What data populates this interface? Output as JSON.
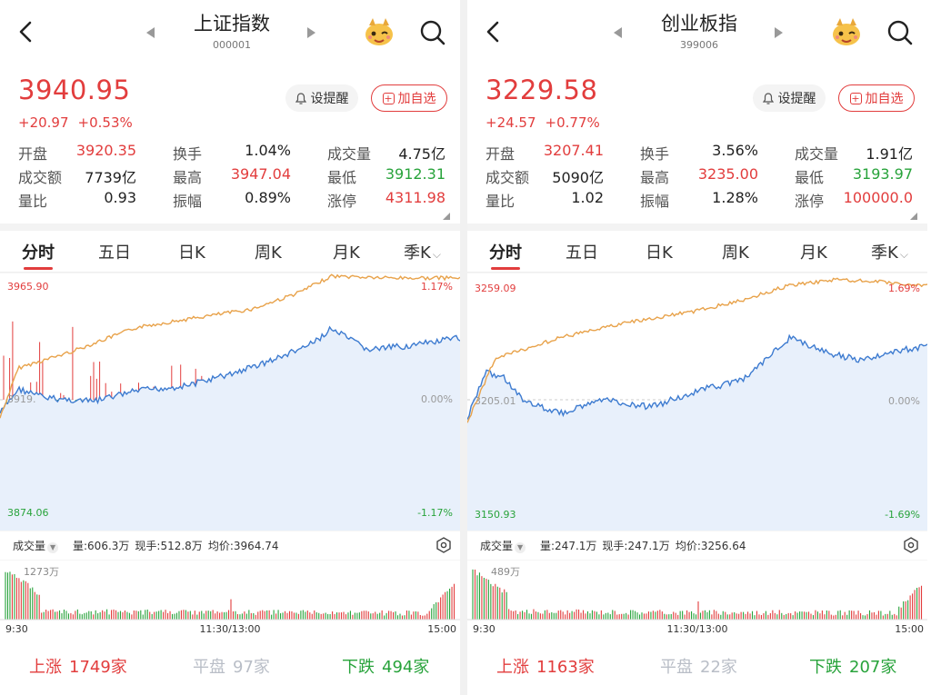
{
  "panels": [
    {
      "title": "上证指数",
      "code": "000001",
      "price": "3940.95",
      "change_abs": "+20.97",
      "change_pct": "+0.53%",
      "alert_label": "设提醒",
      "fav_label": "加自选",
      "stats": [
        [
          {
            "label": "开盘",
            "value": "3920.35",
            "color": "red"
          },
          {
            "label": "换手",
            "value": "1.04%",
            "color": ""
          },
          {
            "label": "成交量",
            "value": "4.75亿",
            "color": ""
          }
        ],
        [
          {
            "label": "成交额",
            "value": "7739亿",
            "color": ""
          },
          {
            "label": "最高",
            "value": "3947.04",
            "color": "red"
          },
          {
            "label": "最低",
            "value": "3912.31",
            "color": "green"
          }
        ],
        [
          {
            "label": "量比",
            "value": "0.93",
            "color": ""
          },
          {
            "label": "振幅",
            "value": "0.89%",
            "color": ""
          },
          {
            "label": "涨停",
            "value": "4311.98",
            "color": "red"
          }
        ]
      ],
      "tabs": [
        "分时",
        "五日",
        "日K",
        "周K",
        "月K",
        "季K"
      ],
      "chart": {
        "y_high": "3965.90",
        "y_low": "3874.06",
        "y_mid": "3919.",
        "pct_high": "1.17%",
        "pct_low": "-1.17%",
        "pct_mid": "0.00%"
      },
      "volume": {
        "selector": "成交量",
        "amount": "量:606.3万",
        "current": "现手:512.8万",
        "avg": "均价:3964.74",
        "max_label": "1273万",
        "t_start": "9:30",
        "t_mid": "11:30/13:00",
        "t_end": "15:00"
      },
      "breadth": {
        "up_label": "上涨",
        "up_count": "1749家",
        "flat_label": "平盘",
        "flat_count": "97家",
        "down_label": "下跌",
        "down_count": "494家"
      }
    },
    {
      "title": "创业板指",
      "code": "399006",
      "price": "3229.58",
      "change_abs": "+24.57",
      "change_pct": "+0.77%",
      "alert_label": "设提醒",
      "fav_label": "加自选",
      "stats": [
        [
          {
            "label": "开盘",
            "value": "3207.41",
            "color": "red"
          },
          {
            "label": "换手",
            "value": "3.56%",
            "color": ""
          },
          {
            "label": "成交量",
            "value": "1.91亿",
            "color": ""
          }
        ],
        [
          {
            "label": "成交额",
            "value": "5090亿",
            "color": ""
          },
          {
            "label": "最高",
            "value": "3235.00",
            "color": "red"
          },
          {
            "label": "最低",
            "value": "3193.97",
            "color": "green"
          }
        ],
        [
          {
            "label": "量比",
            "value": "1.02",
            "color": ""
          },
          {
            "label": "振幅",
            "value": "1.28%",
            "color": ""
          },
          {
            "label": "涨停",
            "value": "100000.0",
            "color": "red"
          }
        ]
      ],
      "tabs": [
        "分时",
        "五日",
        "日K",
        "周K",
        "月K",
        "季K"
      ],
      "chart": {
        "y_high": "3259.09",
        "y_low": "3150.93",
        "y_mid": "3205.01",
        "pct_high": "1.69%",
        "pct_low": "-1.69%",
        "pct_mid": "0.00%"
      },
      "volume": {
        "selector": "成交量",
        "amount": "量:247.1万",
        "current": "现手:247.1万",
        "avg": "均价:3256.64",
        "max_label": "489万",
        "t_start": "9:30",
        "t_mid": "11:30/13:00",
        "t_end": "15:00"
      },
      "breadth": {
        "up_label": "上涨",
        "up_count": "1163家",
        "flat_label": "平盘",
        "flat_count": "22家",
        "down_label": "下跌",
        "down_count": "207家"
      }
    }
  ],
  "colors": {
    "up": "#e23d3d",
    "down": "#28a33b",
    "price_line": "#3d7bd0",
    "avg_line": "#e8a24a"
  }
}
